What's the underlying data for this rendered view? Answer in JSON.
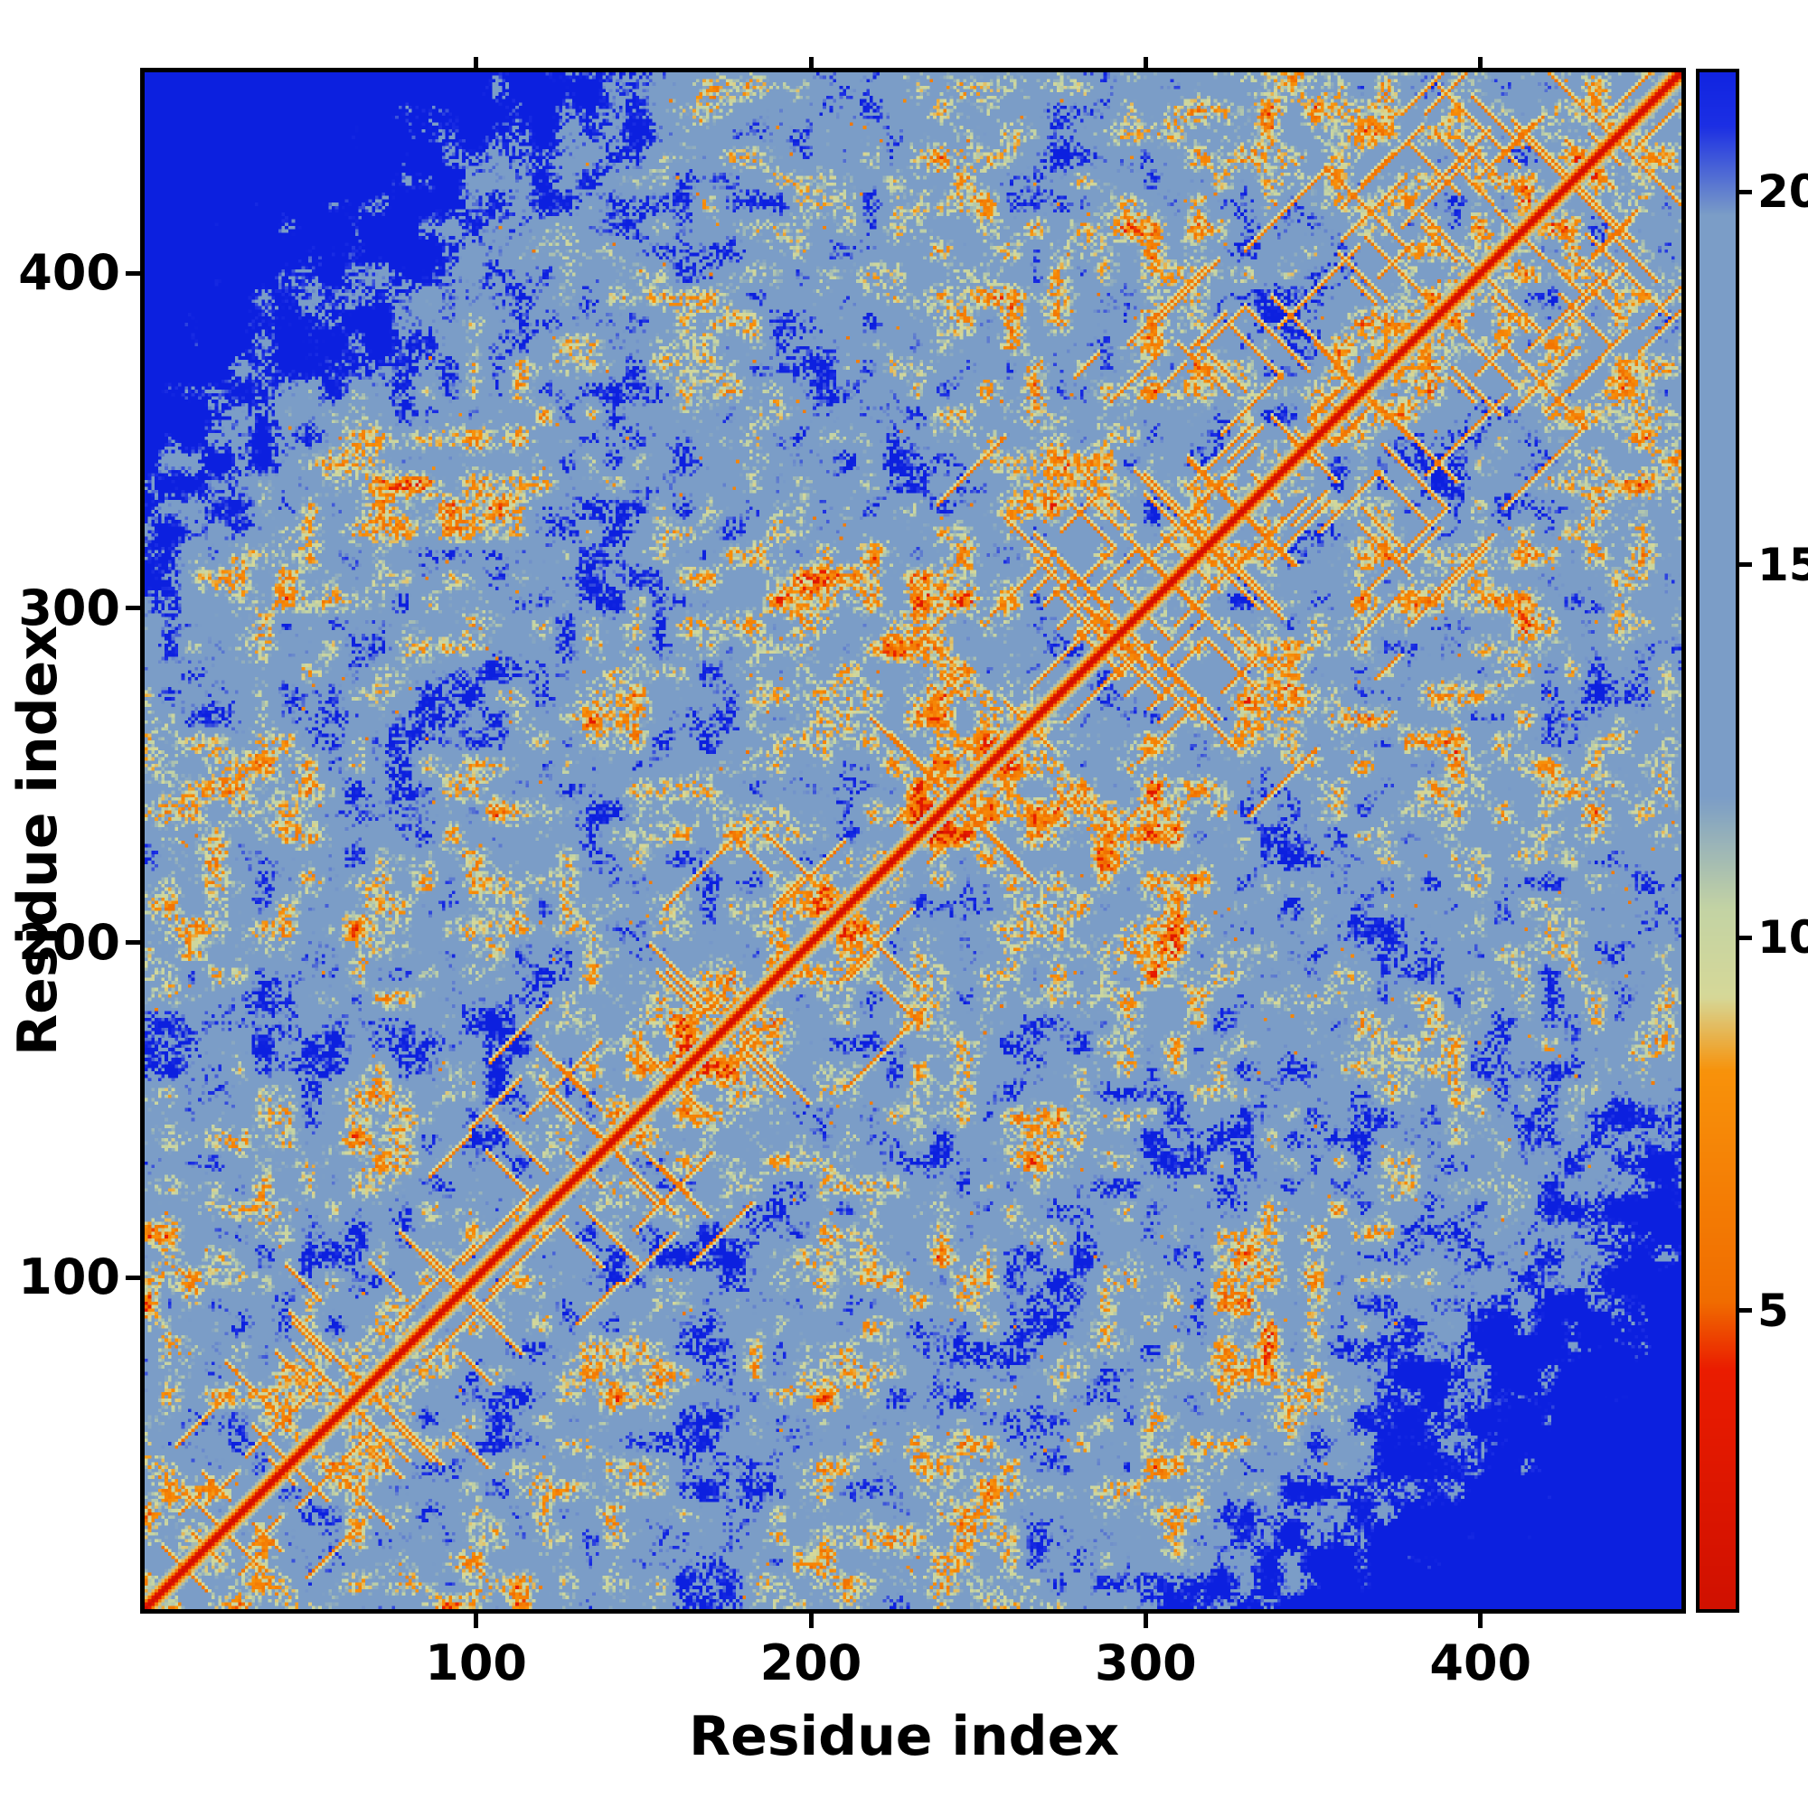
{
  "chart_data": {
    "type": "heatmap",
    "title": "",
    "xlabel": "Residue index",
    "ylabel": "Residue index",
    "x_range": [
      1,
      460
    ],
    "y_range": [
      1,
      460
    ],
    "x_ticks": [
      100,
      200,
      300,
      400
    ],
    "y_ticks": [
      100,
      200,
      300,
      400
    ],
    "grid": false,
    "legend": "none",
    "matrix_description": "Symmetric inter-residue distance map of a ~460-residue protein. Red line along the main diagonal (shortest distances), orange secondary-structure contact streaks running parallel and antiparallel near the diagonal, pale-green contact halos around them, dominant slate-blue mid-range distances (about 10-20), and deep blue long-range distances (>20) that fill the far off-diagonal corners and appear as speckles throughout.",
    "colorbar": {
      "position": "right",
      "orientation": "vertical",
      "ticks": [
        5,
        10,
        15,
        20
      ],
      "vmin": 1,
      "vmax": 21.6
    },
    "colormap_stops": [
      [
        0.0,
        "#c80d00"
      ],
      [
        4.2,
        "#ea1c00"
      ],
      [
        5.1,
        "#f06c00"
      ],
      [
        8.2,
        "#f8920a"
      ],
      [
        9.2,
        "#d6d898"
      ],
      [
        10.4,
        "#c3d3a4"
      ],
      [
        11.9,
        "#7b9dc7"
      ],
      [
        19.7,
        "#7b9dc7"
      ],
      [
        20.9,
        "#1c2fe4"
      ],
      [
        22.0,
        "#0a1ede"
      ]
    ],
    "generator": {
      "seed": 1337,
      "n": 460,
      "base_value": 15.3,
      "blob_amplitude": 21,
      "speckle_amplitude": 7,
      "diag_haze_depth": 4.5,
      "diag_haze_scale": 22,
      "long_range_start": 288,
      "long_range_slope": 0.15,
      "diag_values": [
        0.8,
        3.2,
        6.4,
        8.8,
        11.0
      ],
      "streak_count": 150,
      "streak_value": 5.2
    }
  }
}
